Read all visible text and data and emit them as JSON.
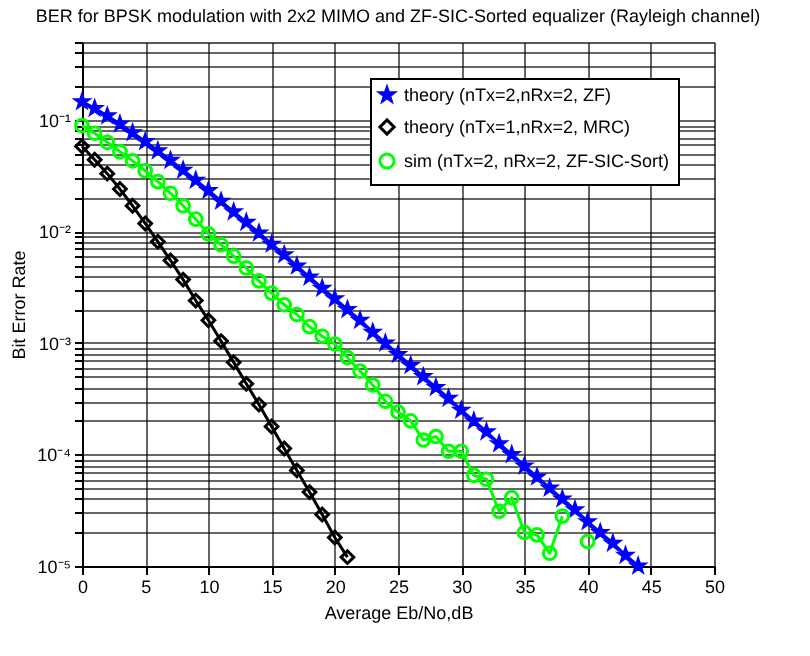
{
  "chart_data": {
    "type": "line",
    "title": "BER for BPSK modulation with 2x2 MIMO and ZF-SIC-Sorted equalizer (Rayleigh channel)",
    "xlabel": "Average Eb/No,dB",
    "ylabel": "Bit Error Rate",
    "x": [
      0,
      1,
      2,
      3,
      4,
      5,
      6,
      7,
      8,
      9,
      10,
      11,
      12,
      13,
      14,
      15,
      16,
      17,
      18,
      19,
      20,
      21,
      22,
      23,
      24,
      25,
      26,
      27,
      28,
      29,
      30,
      31,
      32,
      33,
      34,
      35,
      36,
      37,
      38,
      39,
      40,
      41,
      42,
      43,
      44
    ],
    "series": [
      {
        "name": "theory (nTx=2,nRx=2, ZF)",
        "color": "#0000ff",
        "marker": "star",
        "values": [
          0.146,
          0.127,
          0.109,
          0.092,
          0.077,
          0.064,
          0.053,
          0.0435,
          0.0355,
          0.0288,
          0.0233,
          0.0187,
          0.015,
          0.0121,
          0.0097,
          0.0077,
          0.0062,
          0.0049,
          0.0039,
          0.0031,
          0.0025,
          0.002,
          0.0016,
          0.00125,
          0.001,
          0.00079,
          0.00063,
          0.0005,
          0.0004,
          0.00032,
          0.00025,
          0.0002,
          0.00016,
          0.000125,
          0.0001,
          7.9e-05,
          6.3e-05,
          5e-05,
          4e-05,
          3.2e-05,
          2.5e-05,
          2e-05,
          1.6e-05,
          1.25e-05,
          1e-05
        ]
      },
      {
        "name": "theory (nTx=1,nRx=2, MRC)",
        "color": "#000000",
        "marker": "diamond",
        "x": [
          0,
          1,
          2,
          3,
          4,
          5,
          6,
          7,
          8,
          9,
          10,
          11,
          12,
          13,
          14,
          15,
          16,
          17,
          18,
          19,
          20,
          21
        ],
        "values": [
          0.058,
          0.044,
          0.033,
          0.024,
          0.017,
          0.0118,
          0.0081,
          0.0055,
          0.0037,
          0.0024,
          0.0016,
          0.00104,
          0.00067,
          0.00043,
          0.00028,
          0.000178,
          0.000113,
          7.2e-05,
          4.6e-05,
          2.9e-05,
          1.8e-05,
          1.2e-05
        ]
      },
      {
        "name": "sim (nTx=2, nRx=2, ZF-SIC-Sort)",
        "color": "#00ff00",
        "marker": "circle",
        "x": [
          0,
          1,
          2,
          3,
          4,
          5,
          6,
          7,
          8,
          9,
          10,
          11,
          12,
          13,
          14,
          15,
          16,
          17,
          18,
          19,
          20,
          21,
          22,
          23,
          24,
          25,
          26,
          27,
          28,
          29,
          30,
          31,
          32,
          33,
          34,
          35,
          36,
          37,
          38,
          39,
          40
        ],
        "values": [
          0.089,
          0.076,
          0.063,
          0.052,
          0.043,
          0.035,
          0.028,
          0.022,
          0.017,
          0.0129,
          0.0095,
          0.0076,
          0.006,
          0.0047,
          0.0036,
          0.0028,
          0.0022,
          0.0018,
          0.0014,
          0.00115,
          0.00098,
          0.00074,
          0.00056,
          0.00042,
          0.0003,
          0.00024,
          0.0002,
          0.000135,
          0.000145,
          0.000107,
          0.000107,
          6.5e-05,
          6e-05,
          3.1e-05,
          4.1e-05,
          2e-05,
          1.9e-05,
          1.3e-05,
          2.8e-05,
          null,
          1.66e-05
        ]
      }
    ],
    "xlim": [
      0,
      50
    ],
    "xticks": [
      0,
      5,
      10,
      15,
      20,
      25,
      30,
      35,
      40,
      45,
      50
    ],
    "ylim": [
      1e-05,
      0.5
    ],
    "log": true,
    "yticks": [
      {
        "value": 1e-05,
        "label": "10⁻⁵"
      },
      {
        "value": 2e-05,
        "label": null
      },
      {
        "value": 3e-05,
        "label": null
      },
      {
        "value": 4e-05,
        "label": null
      },
      {
        "value": 5e-05,
        "label": null
      },
      {
        "value": 6e-05,
        "label": null
      },
      {
        "value": 7e-05,
        "label": null
      },
      {
        "value": 8e-05,
        "label": null
      },
      {
        "value": 9e-05,
        "label": null
      },
      {
        "value": 0.0001,
        "label": "10⁻⁴"
      },
      {
        "value": 0.0002,
        "label": null
      },
      {
        "value": 0.0003,
        "label": null
      },
      {
        "value": 0.0004,
        "label": null
      },
      {
        "value": 0.0005,
        "label": null
      },
      {
        "value": 0.0006,
        "label": null
      },
      {
        "value": 0.0007,
        "label": null
      },
      {
        "value": 0.0008,
        "label": null
      },
      {
        "value": 0.0009,
        "label": null
      },
      {
        "value": 0.001,
        "label": "10⁻³"
      },
      {
        "value": 0.002,
        "label": null
      },
      {
        "value": 0.003,
        "label": null
      },
      {
        "value": 0.004,
        "label": null
      },
      {
        "value": 0.005,
        "label": null
      },
      {
        "value": 0.006,
        "label": null
      },
      {
        "value": 0.007,
        "label": null
      },
      {
        "value": 0.008,
        "label": null
      },
      {
        "value": 0.009,
        "label": null
      },
      {
        "value": 0.01,
        "label": "10⁻²"
      },
      {
        "value": 0.02,
        "label": null
      },
      {
        "value": 0.03,
        "label": null
      },
      {
        "value": 0.04,
        "label": null
      },
      {
        "value": 0.05,
        "label": null
      },
      {
        "value": 0.06,
        "label": null
      },
      {
        "value": 0.07,
        "label": null
      },
      {
        "value": 0.08,
        "label": null
      },
      {
        "value": 0.09,
        "label": null
      },
      {
        "value": 0.1,
        "label": "10⁻¹"
      },
      {
        "value": 0.2,
        "label": null
      },
      {
        "value": 0.3,
        "label": null
      },
      {
        "value": 0.4,
        "label": null
      },
      {
        "value": 0.5,
        "label": null
      }
    ],
    "grid": true,
    "legend": "top right",
    "line_style": "solid"
  }
}
